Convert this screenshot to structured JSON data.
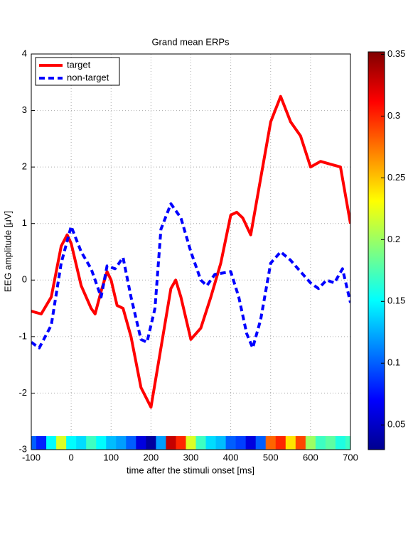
{
  "chart_data": {
    "type": "line",
    "title": "Grand mean ERPs",
    "xlabel": "time after the stimuli onset [ms]",
    "ylabel": "EEG amplitude [μV]",
    "xlim": [
      -100,
      700
    ],
    "xticks": [
      -100,
      0,
      100,
      200,
      300,
      400,
      500,
      600,
      700
    ],
    "ylim": [
      -3,
      4
    ],
    "yticks": [
      -3,
      -2,
      -1,
      0,
      1,
      2,
      3,
      4
    ],
    "grid": true,
    "legend": "upper left",
    "series": [
      {
        "name": "target",
        "color": "#ff0000",
        "style": "solid",
        "x": [
          -100,
          -75,
          -50,
          -25,
          -10,
          0,
          25,
          50,
          60,
          75,
          90,
          100,
          115,
          130,
          150,
          175,
          200,
          225,
          250,
          262,
          275,
          300,
          325,
          350,
          375,
          400,
          415,
          430,
          450,
          475,
          500,
          525,
          550,
          575,
          600,
          625,
          650,
          675,
          700
        ],
        "values": [
          -0.55,
          -0.6,
          -0.3,
          0.6,
          0.8,
          0.65,
          -0.1,
          -0.5,
          -0.6,
          -0.2,
          0.15,
          0.0,
          -0.45,
          -0.5,
          -1.0,
          -1.9,
          -2.25,
          -1.2,
          -0.15,
          0.0,
          -0.3,
          -1.05,
          -0.85,
          -0.3,
          0.3,
          1.15,
          1.2,
          1.1,
          0.8,
          1.8,
          2.8,
          3.25,
          2.8,
          2.55,
          2.0,
          2.1,
          2.05,
          2.0,
          1.0
        ]
      },
      {
        "name": "non-target",
        "color": "#0000ff",
        "style": "dashed",
        "x": [
          -100,
          -80,
          -50,
          -25,
          0,
          25,
          50,
          75,
          90,
          110,
          130,
          150,
          175,
          190,
          210,
          225,
          250,
          275,
          300,
          325,
          340,
          360,
          400,
          420,
          440,
          455,
          475,
          500,
          525,
          550,
          575,
          600,
          620,
          640,
          660,
          680,
          700
        ],
        "values": [
          -1.1,
          -1.2,
          -0.8,
          0.3,
          0.95,
          0.5,
          0.2,
          -0.3,
          0.25,
          0.2,
          0.4,
          -0.3,
          -1.05,
          -1.1,
          -0.5,
          0.9,
          1.35,
          1.1,
          0.5,
          0.0,
          -0.1,
          0.1,
          0.15,
          -0.3,
          -0.95,
          -1.2,
          -0.7,
          0.3,
          0.5,
          0.35,
          0.15,
          -0.05,
          -0.15,
          0.0,
          -0.05,
          0.2,
          -0.4
        ]
      }
    ],
    "strip": {
      "x": [
        -100,
        -75,
        -50,
        -25,
        0,
        25,
        50,
        75,
        100,
        125,
        150,
        175,
        200,
        225,
        250,
        275,
        300,
        325,
        350,
        375,
        400,
        425,
        450,
        475,
        500,
        525,
        550,
        575,
        600,
        625,
        650,
        675,
        700
      ],
      "values": [
        0.1,
        0.08,
        0.15,
        0.22,
        0.15,
        0.14,
        0.17,
        0.15,
        0.13,
        0.12,
        0.1,
        0.06,
        0.04,
        0.12,
        0.33,
        0.3,
        0.22,
        0.17,
        0.14,
        0.13,
        0.1,
        0.09,
        0.06,
        0.1,
        0.28,
        0.3,
        0.24,
        0.29,
        0.2,
        0.17,
        0.18,
        0.16,
        0.17
      ]
    },
    "clim": [
      0.03,
      0.352
    ],
    "cticks": [
      0.05,
      0.1,
      0.15,
      0.2,
      0.25,
      0.3,
      0.35
    ]
  }
}
